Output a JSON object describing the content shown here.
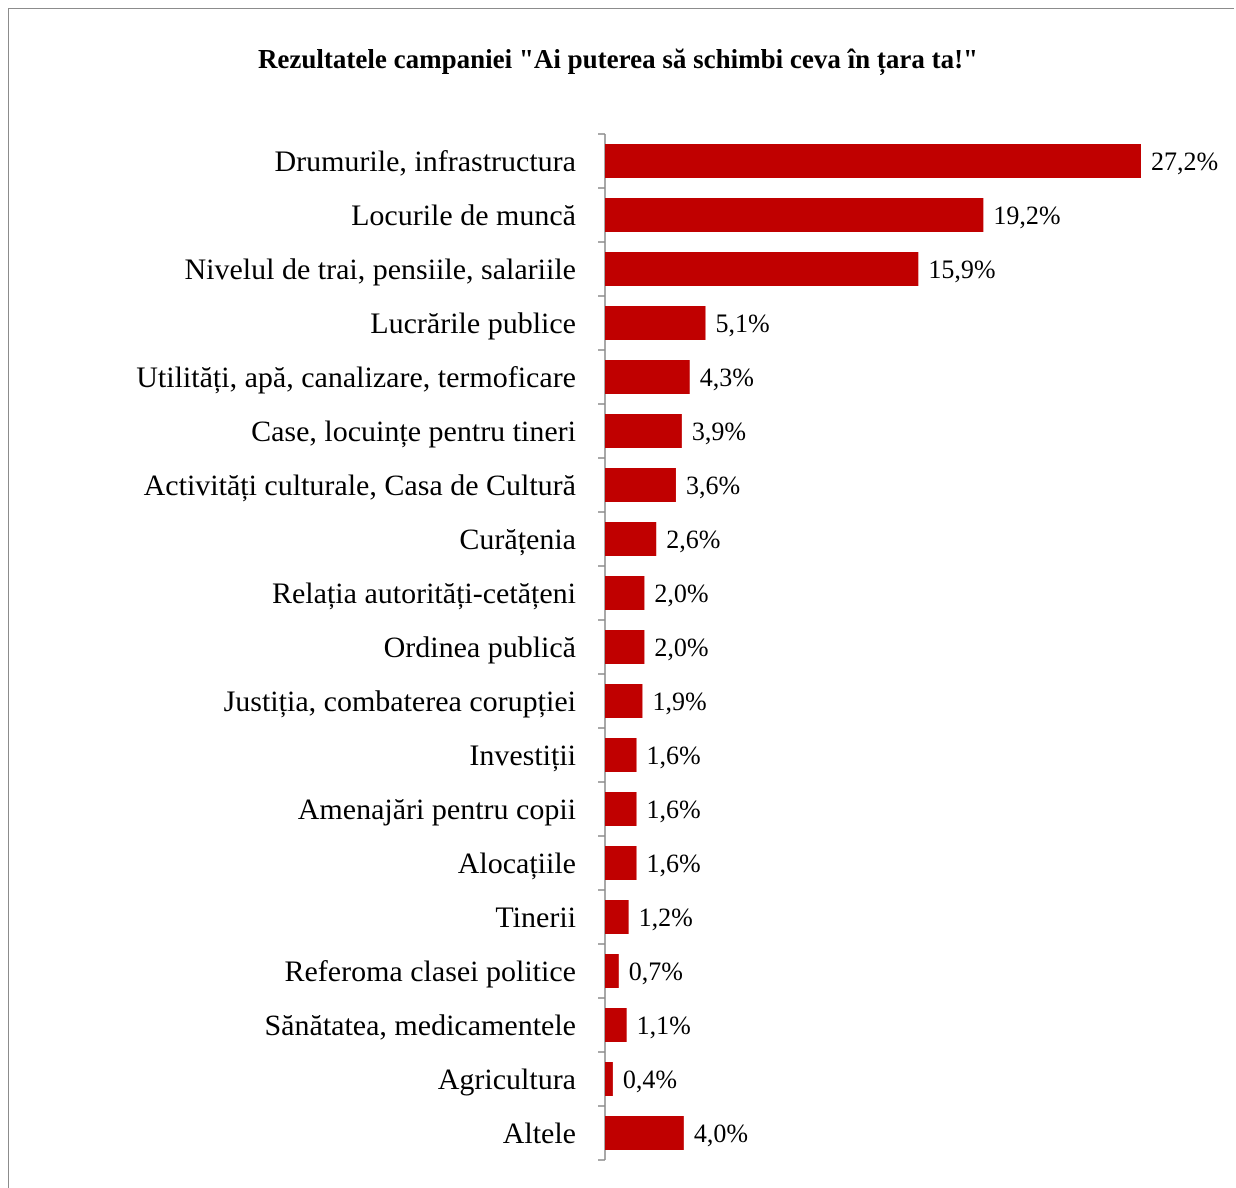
{
  "chart_data": {
    "type": "bar",
    "orientation": "horizontal",
    "title": "Rezultatele campaniei \"Ai puterea să schimbi ceva în țara ta!\"",
    "xlabel": "",
    "ylabel": "",
    "xlim": [
      0,
      27.2
    ],
    "grid": false,
    "legend": "none",
    "bar_color": "#c00000",
    "categories": [
      "Drumurile, infrastructura",
      "Locurile de muncă",
      "Nivelul de trai, pensiile, salariile",
      "Lucrările publice",
      "Utilități, apă, canalizare, termoficare",
      "Case, locuințe pentru tineri",
      "Activități culturale, Casa de Cultură",
      "Curățenia",
      "Relația autorități-cetățeni",
      "Ordinea publică",
      "Justiția, combaterea corupției",
      "Investiții",
      "Amenajări pentru copii",
      "Alocațiile",
      "Tinerii",
      "Referoma clasei politice",
      "Sănătatea, medicamentele",
      "Agricultura",
      "Altele"
    ],
    "values": [
      27.2,
      19.2,
      15.9,
      5.1,
      4.3,
      3.9,
      3.6,
      2.6,
      2.0,
      2.0,
      1.9,
      1.6,
      1.6,
      1.6,
      1.2,
      0.7,
      1.1,
      0.4,
      4.0
    ],
    "value_labels": [
      "27,2%",
      "19,2%",
      "15,9%",
      "5,1%",
      "4,3%",
      "3,9%",
      "3,6%",
      "2,6%",
      "2,0%",
      "2,0%",
      "1,9%",
      "1,6%",
      "1,6%",
      "1,6%",
      "1,2%",
      "0,7%",
      "1,1%",
      "0,4%",
      "4,0%"
    ]
  }
}
